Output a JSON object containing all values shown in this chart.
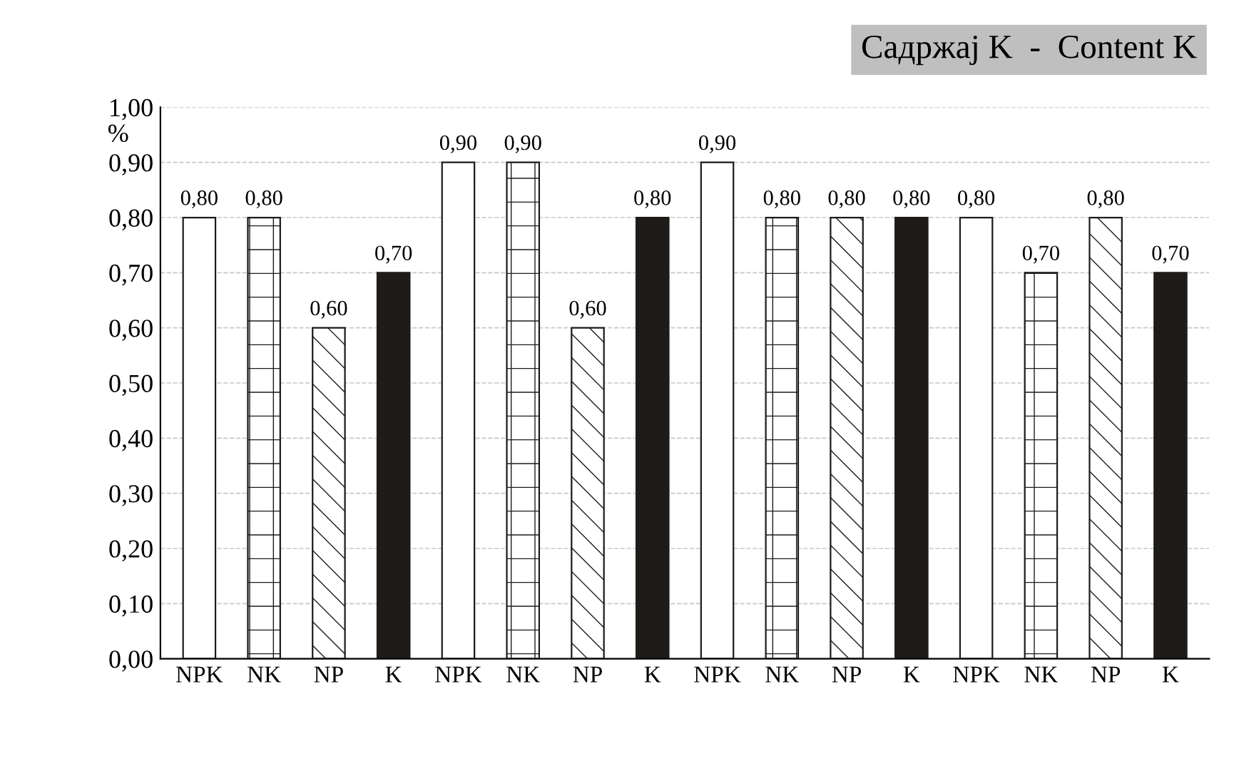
{
  "chart_data": {
    "type": "bar",
    "title": "Садржај K  -  Content K",
    "ylabel": "%",
    "categories": [
      "NPK",
      "NK",
      "NP",
      "K",
      "NPK",
      "NK",
      "NP",
      "K",
      "NPK",
      "NK",
      "NP",
      "K",
      "NPK",
      "NK",
      "NP",
      "K"
    ],
    "values": [
      0.8,
      0.8,
      0.6,
      0.7,
      0.9,
      0.9,
      0.6,
      0.8,
      0.9,
      0.8,
      0.8,
      0.8,
      0.8,
      0.7,
      0.8,
      0.7
    ],
    "value_labels": [
      "0,80",
      "0,80",
      "0,60",
      "0,70",
      "0,90",
      "0,90",
      "0,60",
      "0,80",
      "0,90",
      "0,80",
      "0,80",
      "0,80",
      "0,80",
      "0,70",
      "0,80",
      "0,70"
    ],
    "colors": [
      "#ffffff",
      "#1e1c1a",
      "#1e1c1a",
      "#1e1c1a",
      "#ffffff",
      "#1e1c1a",
      "#1e1c1a",
      "#1e1c1a",
      "#ffffff",
      "#1e1c1a",
      "#1e1c1a",
      "#1e1c1a",
      "#ffffff",
      "#1e1c1a",
      "#1e1c1a",
      "#1e1c1a"
    ],
    "ylim": [
      0,
      1.0
    ],
    "yticks": [
      {
        "value": 0,
        "label": "0,00"
      },
      {
        "value": 0.1,
        "label": "0,10"
      },
      {
        "value": 0.2,
        "label": "0,20"
      },
      {
        "value": 0.3,
        "label": "0,30"
      },
      {
        "value": 0.4,
        "label": "0,40"
      },
      {
        "value": 0.5,
        "label": "0,50"
      },
      {
        "value": 0.6,
        "label": "0,60"
      },
      {
        "value": 0.7,
        "label": "0,70"
      },
      {
        "value": 0.8,
        "label": "0,80"
      },
      {
        "value": 0.9,
        "label": "0,90"
      },
      {
        "value": 1.0,
        "label": "1,00"
      }
    ],
    "grid": "y"
  }
}
